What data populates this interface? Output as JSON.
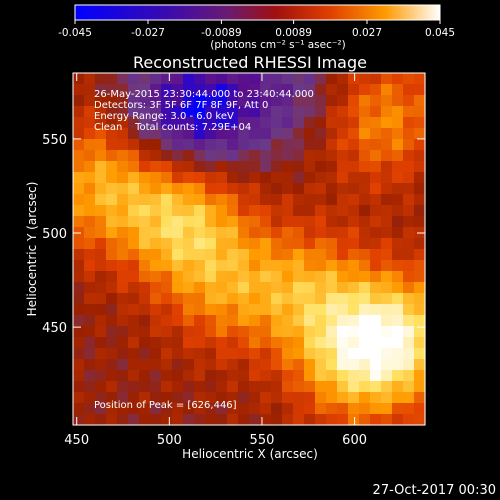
{
  "colorbar": {
    "ticks": [
      "-0.045",
      "-0.027",
      "-0.0089",
      "0.0089",
      "0.027",
      "0.045"
    ],
    "range": [
      -0.045,
      0.045
    ],
    "unit_label": "(photons cm⁻² s⁻¹ asec⁻²)"
  },
  "chart_data": {
    "type": "heatmap",
    "title": "Reconstructed RHESSI Image",
    "xlabel": "Heliocentric X (arcsec)",
    "ylabel": "Heliocentric Y (arcsec)",
    "xlim": [
      448,
      638
    ],
    "ylim": [
      398,
      585
    ],
    "x_ticks": [
      "450",
      "500",
      "550",
      "600"
    ],
    "y_ticks": [
      "450",
      "500",
      "550"
    ],
    "colormap": [
      "#0000ff",
      "#5a0e8c",
      "#6a3a8a",
      "#9a2000",
      "#e04000",
      "#ff9a00",
      "#ffe060",
      "#ffffff"
    ],
    "peak": [
      626,
      446
    ],
    "annotations": [
      "26-May-2015 23:30:44.000 to 23:40:44.000",
      "Detectors: 3F 5F 6F 7F 8F 9F, Att 0",
      "Energy Range: 3.0 - 6.0 keV",
      "Clean    Total counts: 7.29E+04",
      "Position of Peak = [626,446]"
    ],
    "hotspots": [
      {
        "x": 507,
        "y": 507,
        "strength": 0.95
      },
      {
        "x": 530,
        "y": 470,
        "strength": 0.6
      },
      {
        "x": 575,
        "y": 470,
        "strength": 0.7
      },
      {
        "x": 600,
        "y": 432,
        "strength": 0.9
      },
      {
        "x": 626,
        "y": 446,
        "strength": 1.0
      },
      {
        "x": 470,
        "y": 545,
        "strength": 0.45
      },
      {
        "x": 615,
        "y": 560,
        "strength": 0.7
      },
      {
        "x": 460,
        "y": 520,
        "strength": 0.55
      }
    ],
    "coldspots": [
      {
        "x": 520,
        "y": 565,
        "strength": 1.0
      },
      {
        "x": 565,
        "y": 575,
        "strength": 0.5
      },
      {
        "x": 490,
        "y": 560,
        "strength": 0.6
      }
    ]
  },
  "footer": {
    "timestamp": "27-Oct-2017 00:30"
  }
}
